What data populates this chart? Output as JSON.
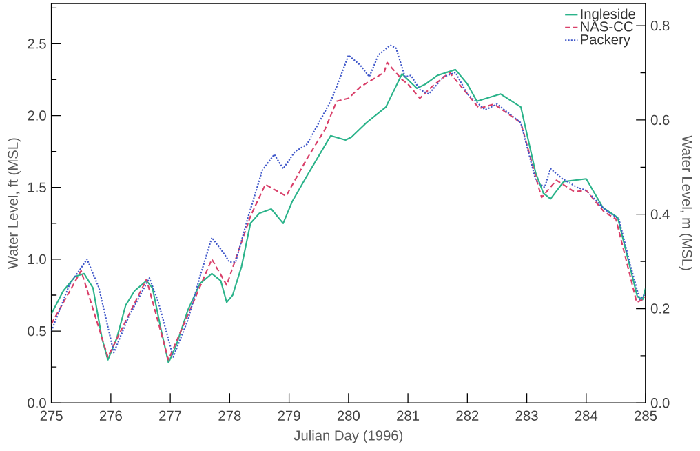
{
  "chart_data": {
    "type": "line",
    "xlabel": "Julian Day (1996)",
    "ylabel": "Water Level, ft (MSL)",
    "y2label": "Water Level, m (MSL)",
    "xlim": [
      275,
      285
    ],
    "xticks": [
      275,
      276,
      277,
      278,
      279,
      280,
      281,
      282,
      283,
      284,
      285
    ],
    "ylim": [
      0,
      2.78
    ],
    "yticks": [
      {
        "value": 0,
        "label": "0.0"
      },
      {
        "value": 0.25,
        "label": null
      },
      {
        "value": 0.5,
        "label": "0.5"
      },
      {
        "value": 0.75,
        "label": null
      },
      {
        "value": 1.0,
        "label": "1.0"
      },
      {
        "value": 1.25,
        "label": null
      },
      {
        "value": 1.5,
        "label": "1.5"
      },
      {
        "value": 1.75,
        "label": null
      },
      {
        "value": 2.0,
        "label": "2.0"
      },
      {
        "value": 2.25,
        "label": null
      },
      {
        "value": 2.5,
        "label": "2.5"
      },
      {
        "value": 2.75,
        "label": null
      }
    ],
    "y2lim": [
      0,
      0.847
    ],
    "y2ticks": [
      {
        "value": 0,
        "label": "0.0"
      },
      {
        "value": 0.1,
        "label": null
      },
      {
        "value": 0.2,
        "label": "0.2"
      },
      {
        "value": 0.3,
        "label": null
      },
      {
        "value": 0.4,
        "label": "0.4"
      },
      {
        "value": 0.5,
        "label": null
      },
      {
        "value": 0.6,
        "label": "0.6"
      },
      {
        "value": 0.7,
        "label": null
      },
      {
        "value": 0.8,
        "label": "0.8"
      }
    ],
    "legend": "top right",
    "marker": "none",
    "series": [
      {
        "name": "Ingleside",
        "color": "#2bb38a",
        "line_style": "solid",
        "x": [
          275.0,
          275.2,
          275.4,
          275.55,
          275.7,
          275.85,
          275.95,
          276.1,
          276.25,
          276.4,
          276.6,
          276.7,
          276.85,
          276.97,
          277.1,
          277.3,
          277.5,
          277.7,
          277.85,
          277.95,
          278.05,
          278.2,
          278.35,
          278.5,
          278.7,
          278.9,
          279.05,
          279.3,
          279.5,
          279.7,
          279.95,
          280.05,
          280.3,
          280.63,
          280.9,
          281.0,
          281.15,
          281.3,
          281.5,
          281.8,
          282.0,
          282.16,
          282.56,
          282.9,
          283.15,
          283.28,
          283.4,
          283.62,
          284.0,
          284.28,
          284.53,
          284.86,
          284.95,
          285.0
        ],
        "values": [
          0.62,
          0.78,
          0.88,
          0.9,
          0.8,
          0.45,
          0.3,
          0.45,
          0.68,
          0.78,
          0.85,
          0.8,
          0.5,
          0.28,
          0.4,
          0.65,
          0.83,
          0.9,
          0.85,
          0.7,
          0.75,
          0.95,
          1.25,
          1.32,
          1.35,
          1.25,
          1.4,
          1.58,
          1.72,
          1.86,
          1.83,
          1.85,
          1.95,
          2.06,
          2.29,
          2.25,
          2.19,
          2.22,
          2.28,
          2.32,
          2.22,
          2.1,
          2.15,
          2.06,
          1.6,
          1.46,
          1.42,
          1.54,
          1.56,
          1.36,
          1.29,
          0.74,
          0.72,
          0.8
        ]
      },
      {
        "name": "NAS-CC",
        "color": "#d9406a",
        "line_style": "dashed",
        "x": [
          275.0,
          275.5,
          275.95,
          276.6,
          276.97,
          277.7,
          277.95,
          278.35,
          278.6,
          278.95,
          279.3,
          279.6,
          279.8,
          280.0,
          280.2,
          280.6,
          280.65,
          280.9,
          281.0,
          281.2,
          281.4,
          281.7,
          282.0,
          282.2,
          282.45,
          282.9,
          283.2,
          283.25,
          283.5,
          283.8,
          284.0,
          284.3,
          284.5,
          284.85,
          284.95,
          285.0
        ],
        "values": [
          0.55,
          0.92,
          0.32,
          0.86,
          0.3,
          1.0,
          0.82,
          1.3,
          1.52,
          1.44,
          1.7,
          1.9,
          2.1,
          2.12,
          2.2,
          2.3,
          2.37,
          2.25,
          2.22,
          2.12,
          2.2,
          2.3,
          2.15,
          2.05,
          2.08,
          1.95,
          1.5,
          1.43,
          1.55,
          1.47,
          1.48,
          1.33,
          1.28,
          0.7,
          0.72,
          0.74
        ]
      },
      {
        "name": "Packery",
        "color": "#3f57c9",
        "line_style": "dotted",
        "x": [
          275.0,
          275.3,
          275.6,
          275.8,
          276.05,
          276.3,
          276.65,
          276.8,
          277.05,
          277.3,
          277.5,
          277.7,
          277.85,
          278.0,
          278.1,
          278.3,
          278.55,
          278.75,
          278.9,
          279.1,
          279.3,
          279.5,
          279.7,
          279.8,
          280.0,
          280.2,
          280.35,
          280.5,
          280.7,
          280.8,
          280.95,
          281.05,
          281.2,
          281.35,
          281.6,
          281.8,
          282.0,
          282.3,
          282.5,
          282.9,
          283.15,
          283.3,
          283.4,
          283.6,
          283.85,
          284.0,
          284.3,
          284.55,
          284.75,
          284.9,
          285.0
        ],
        "values": [
          0.5,
          0.82,
          1.0,
          0.8,
          0.35,
          0.6,
          0.87,
          0.7,
          0.32,
          0.58,
          0.88,
          1.15,
          1.07,
          0.98,
          0.98,
          1.28,
          1.62,
          1.73,
          1.63,
          1.75,
          1.8,
          1.95,
          2.1,
          2.2,
          2.42,
          2.35,
          2.27,
          2.42,
          2.49,
          2.47,
          2.27,
          2.28,
          2.18,
          2.15,
          2.27,
          2.3,
          2.15,
          2.04,
          2.08,
          1.95,
          1.55,
          1.5,
          1.63,
          1.56,
          1.5,
          1.48,
          1.35,
          1.28,
          0.95,
          0.72,
          0.76
        ]
      }
    ]
  }
}
